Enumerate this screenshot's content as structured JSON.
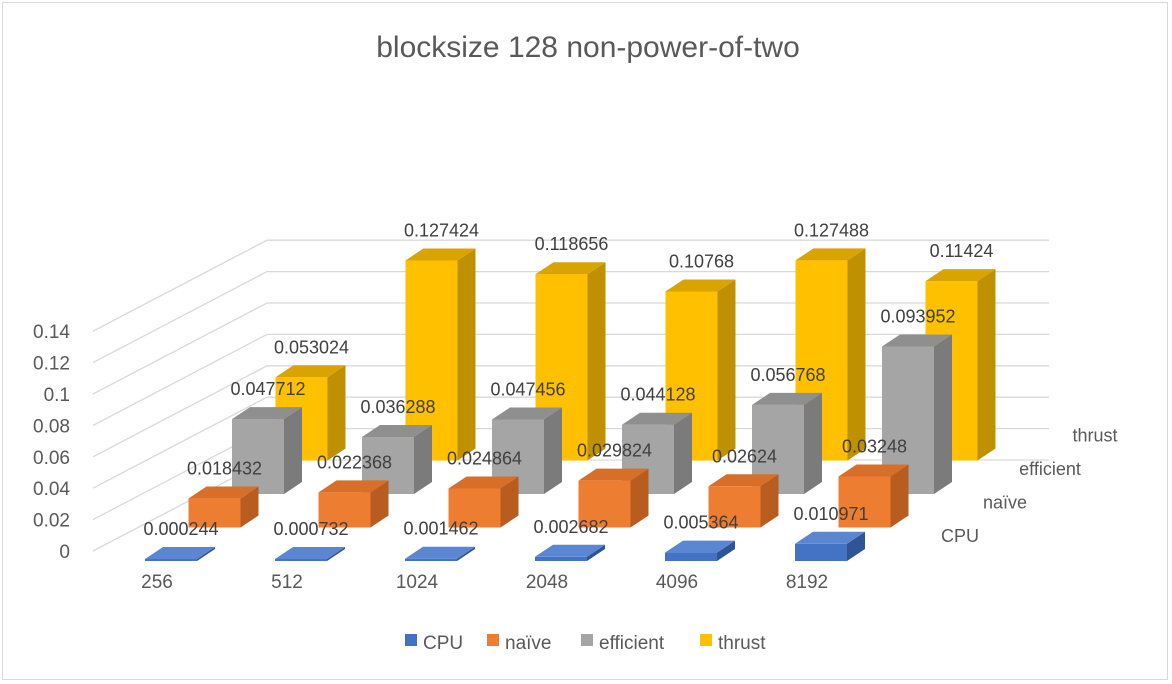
{
  "chart_data": {
    "type": "bar",
    "subtype": "3d-column",
    "title": "blocksize 128 non-power-of-two",
    "categories": [
      "256",
      "512",
      "1024",
      "2048",
      "4096",
      "8192"
    ],
    "series": [
      {
        "name": "CPU",
        "values": [
          0.000244,
          0.000732,
          0.001462,
          0.002682,
          0.005364,
          0.010971
        ],
        "labels": [
          "0.000244",
          "0.000732",
          "0.001462",
          "0.002682",
          "0.005364",
          "0.010971"
        ],
        "color": "#4472C4",
        "side": "#2F5597",
        "top": "#5B86D1"
      },
      {
        "name": "naïve",
        "values": [
          0.018432,
          0.022368,
          0.024864,
          0.029824,
          0.02624,
          0.03248
        ],
        "labels": [
          "0.018432",
          "0.022368",
          "0.024864",
          "0.029824",
          "0.02624",
          "0.03248"
        ],
        "color": "#ED7D31",
        "side": "#B85C1F",
        "top": "#D86F29"
      },
      {
        "name": "efficient",
        "values": [
          0.047712,
          0.036288,
          0.047456,
          0.044128,
          0.056768,
          0.093952
        ],
        "labels": [
          "0.047712",
          "0.036288",
          "0.047456",
          "0.044128",
          "0.056768",
          "0.093952"
        ],
        "color": "#A5A5A5",
        "side": "#7B7B7B",
        "top": "#8F8F8F"
      },
      {
        "name": "thrust",
        "values": [
          0.053024,
          0.127424,
          0.118656,
          0.10768,
          0.127488,
          0.11424
        ],
        "labels": [
          "0.053024",
          "0.127424",
          "0.118656",
          "0.10768",
          "0.127488",
          "0.11424"
        ],
        "color": "#FFC000",
        "side": "#BF9000",
        "top": "#D9A400"
      }
    ],
    "yticks": [
      "0",
      "0.02",
      "0.04",
      "0.06",
      "0.08",
      "0.1",
      "0.12",
      "0.14"
    ],
    "ylim": [
      0,
      0.14
    ],
    "grid": true,
    "legend": "bottom"
  }
}
